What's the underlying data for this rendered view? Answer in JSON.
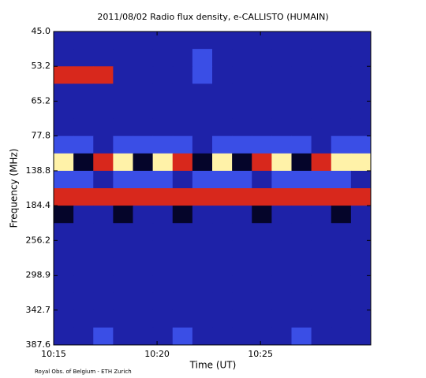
{
  "chart_data": {
    "type": "heatmap",
    "title": "2011/08/02  Radio flux density, e-CALLISTO (HUMAIN)",
    "x_label": "Time (UT)",
    "y_label": "Frequency (MHz)",
    "credit": "Royal Obs. of Belgium - ETH Zurich",
    "xlim": [
      "10:15:00",
      "10:30:20"
    ],
    "xticks": [
      "10:15",
      "10:20",
      "10:25"
    ],
    "ylim": [
      45.0,
      387.6
    ],
    "yticks": [
      {
        "value": 45.0,
        "label": "45.0"
      },
      {
        "value": 53.2,
        "label": "53.2"
      },
      {
        "value": 65.2,
        "label": "65.2"
      },
      {
        "value": 77.8,
        "label": "77.8"
      },
      {
        "value": 138.8,
        "label": "138.8"
      },
      {
        "value": 184.4,
        "label": "184.4"
      },
      {
        "value": 256.2,
        "label": "256.2"
      },
      {
        "value": 298.9,
        "label": "298.9"
      },
      {
        "value": 342.7,
        "label": "342.7"
      },
      {
        "value": 387.6,
        "label": "387.6"
      }
    ],
    "colormap": [
      "#05052a",
      "#1e22a8",
      "#3a4ee6",
      "#d8281c",
      "#fff2a8"
    ],
    "z": [
      [
        1,
        1,
        1,
        1,
        1,
        1,
        1,
        1,
        1,
        1,
        1,
        1,
        1,
        1,
        1,
        1
      ],
      [
        1,
        1,
        1,
        1,
        1,
        1,
        1,
        2,
        1,
        1,
        1,
        1,
        1,
        1,
        1,
        1
      ],
      [
        3,
        3,
        3,
        1,
        1,
        1,
        1,
        2,
        1,
        1,
        1,
        1,
        1,
        1,
        1,
        1
      ],
      [
        1,
        1,
        1,
        1,
        1,
        1,
        1,
        1,
        1,
        1,
        1,
        1,
        1,
        1,
        1,
        1
      ],
      [
        1,
        1,
        1,
        1,
        1,
        1,
        1,
        1,
        1,
        1,
        1,
        1,
        1,
        1,
        1,
        1
      ],
      [
        1,
        1,
        1,
        1,
        1,
        1,
        1,
        1,
        1,
        1,
        1,
        1,
        1,
        1,
        1,
        1
      ],
      [
        2,
        2,
        1,
        2,
        2,
        2,
        2,
        1,
        2,
        2,
        2,
        2,
        2,
        1,
        2,
        2
      ],
      [
        4,
        0,
        3,
        4,
        0,
        4,
        3,
        0,
        4,
        0,
        3,
        4,
        0,
        3,
        4,
        4
      ],
      [
        2,
        2,
        1,
        2,
        2,
        2,
        1,
        2,
        2,
        2,
        1,
        2,
        2,
        2,
        2,
        1
      ],
      [
        3,
        3,
        3,
        3,
        3,
        3,
        3,
        3,
        3,
        3,
        3,
        3,
        3,
        3,
        3,
        3
      ],
      [
        0,
        1,
        1,
        0,
        1,
        1,
        0,
        1,
        1,
        1,
        0,
        1,
        1,
        1,
        0,
        1
      ],
      [
        1,
        1,
        1,
        1,
        1,
        1,
        1,
        1,
        1,
        1,
        1,
        1,
        1,
        1,
        1,
        1
      ],
      [
        1,
        1,
        1,
        1,
        1,
        1,
        1,
        1,
        1,
        1,
        1,
        1,
        1,
        1,
        1,
        1
      ],
      [
        1,
        1,
        1,
        1,
        1,
        1,
        1,
        1,
        1,
        1,
        1,
        1,
        1,
        1,
        1,
        1
      ],
      [
        1,
        1,
        1,
        1,
        1,
        1,
        1,
        1,
        1,
        1,
        1,
        1,
        1,
        1,
        1,
        1
      ],
      [
        1,
        1,
        1,
        1,
        1,
        1,
        1,
        1,
        1,
        1,
        1,
        1,
        1,
        1,
        1,
        1
      ],
      [
        1,
        1,
        1,
        1,
        1,
        1,
        1,
        1,
        1,
        1,
        1,
        1,
        1,
        1,
        1,
        1
      ],
      [
        1,
        1,
        2,
        1,
        1,
        1,
        2,
        1,
        1,
        1,
        1,
        1,
        2,
        1,
        1,
        1
      ]
    ]
  }
}
